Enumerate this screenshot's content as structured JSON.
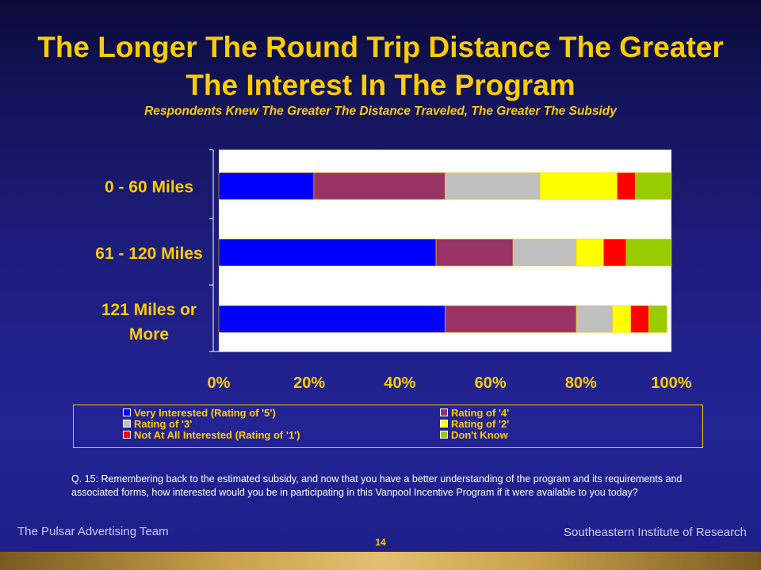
{
  "title": "The Longer The Round Trip Distance The Greater The Interest In The Program",
  "subtitle": "Respondents Knew The Greater The Distance Traveled, The Greater The Subsidy",
  "chart_data": {
    "type": "bar",
    "orientation": "horizontal",
    "stacked": true,
    "categories": [
      "0 - 60 Miles",
      "61 - 120 Miles",
      "121 Miles or More"
    ],
    "series": [
      {
        "name": "Very Interested (Rating of '5')",
        "color": "#0000ff",
        "values": [
          21,
          48,
          50
        ]
      },
      {
        "name": "Rating of '4'",
        "color": "#993366",
        "values": [
          29,
          17,
          29
        ]
      },
      {
        "name": "Rating of '3'",
        "color": "#c0c0c0",
        "values": [
          21,
          14,
          8
        ]
      },
      {
        "name": "Rating of '2'",
        "color": "#ffff00",
        "values": [
          17,
          6,
          4
        ]
      },
      {
        "name": "Not At All Interested (Rating of '1')",
        "color": "#ff0000",
        "values": [
          4,
          5,
          4
        ]
      },
      {
        "name": "Don't Know",
        "color": "#99cc00",
        "values": [
          8,
          10,
          4
        ]
      }
    ],
    "xlim": [
      0,
      100
    ],
    "xticks": [
      "0%",
      "20%",
      "40%",
      "60%",
      "80%",
      "100%"
    ],
    "grid": false,
    "legend_position": "bottom",
    "background_color": "#ffffff"
  },
  "question": "Q. 15: Remembering back to the estimated subsidy, and now that you have a better understanding of the program and its requirements and associated forms, how interested would you be in participating in this Vanpool Incentive Program if it were available to you today?",
  "footer_left": "The Pulsar Advertising Team",
  "footer_right": "Southeastern Institute of Research",
  "page_number": "14"
}
